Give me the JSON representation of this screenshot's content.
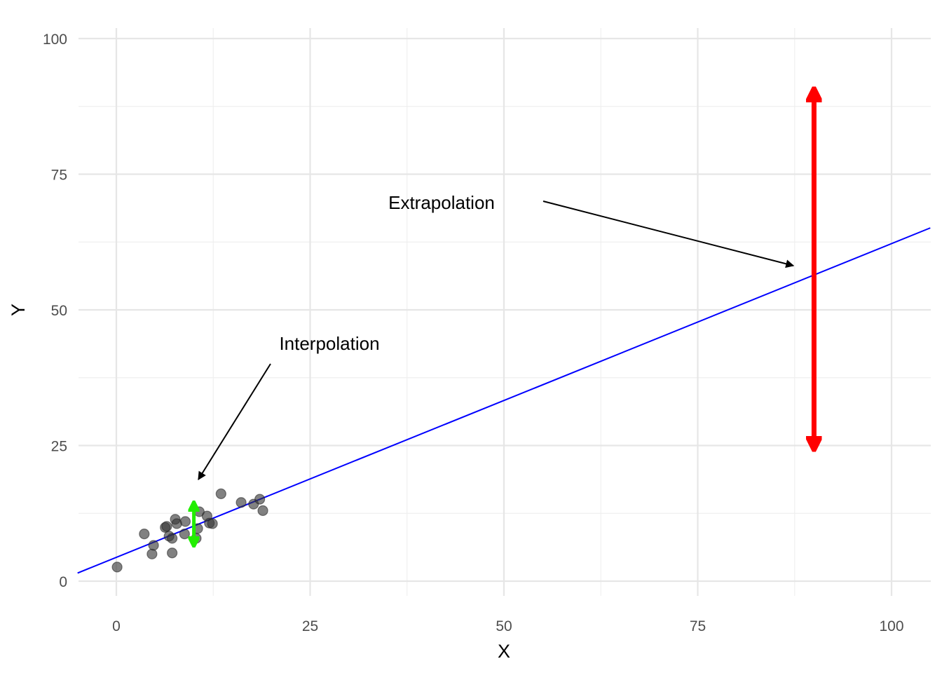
{
  "chart_data": {
    "type": "scatter",
    "title": "",
    "xlabel": "X",
    "ylabel": "Y",
    "xlim": [
      -5,
      105
    ],
    "ylim": [
      -5,
      103
    ],
    "x_ticks": [
      0,
      25,
      50,
      75,
      100
    ],
    "y_ticks": [
      0,
      25,
      50,
      75,
      100
    ],
    "x_tick_labels": [
      "0",
      "25",
      "50",
      "75",
      "100"
    ],
    "y_tick_labels": [
      "0",
      "25",
      "50",
      "75",
      "100"
    ],
    "grid": true,
    "legend": "none",
    "series": [
      {
        "name": "observations",
        "type": "scatter",
        "color": "#333333",
        "points": [
          [
            0.1,
            2.6
          ],
          [
            3.6,
            8.7
          ],
          [
            4.6,
            5.0
          ],
          [
            4.8,
            6.6
          ],
          [
            6.3,
            9.9
          ],
          [
            6.5,
            10.1
          ],
          [
            6.8,
            8.3
          ],
          [
            7.2,
            7.9
          ],
          [
            7.2,
            5.2
          ],
          [
            7.6,
            11.4
          ],
          [
            7.8,
            10.6
          ],
          [
            8.8,
            8.7
          ],
          [
            8.9,
            11.0
          ],
          [
            10.3,
            7.9
          ],
          [
            10.5,
            9.7
          ],
          [
            10.7,
            12.8
          ],
          [
            11.7,
            12.0
          ],
          [
            12.0,
            10.7
          ],
          [
            12.4,
            10.6
          ],
          [
            13.5,
            16.1
          ],
          [
            16.1,
            14.5
          ],
          [
            17.7,
            14.2
          ],
          [
            18.5,
            15.1
          ],
          [
            18.9,
            13.0
          ]
        ]
      },
      {
        "name": "regression line",
        "type": "line",
        "color": "#0000ff",
        "slope": 0.578,
        "intercept": 4.4,
        "x": [
          -5,
          105
        ],
        "y": [
          1.5,
          65.1
        ]
      }
    ],
    "segments": [
      {
        "name": "interpolation-interval",
        "color": "#22ee00",
        "x": 10,
        "y_from": 7,
        "y_to": 14,
        "arrows": "both"
      },
      {
        "name": "extrapolation-interval",
        "color": "#ff0000",
        "x": 90,
        "y_from": 25,
        "y_to": 90,
        "arrows": "both"
      }
    ],
    "annotations": [
      {
        "text": "Interpolation",
        "label_x": 20,
        "label_y": 43,
        "arrow_from": [
          20,
          40
        ],
        "arrow_to": [
          10,
          18
        ]
      },
      {
        "text": "Extrapolation",
        "label_x": 42,
        "label_y": 69,
        "arrow_from": [
          55,
          70
        ],
        "arrow_to": [
          88,
          58
        ]
      }
    ]
  },
  "labels": {
    "xlabel": "X",
    "ylabel": "Y",
    "x_ticks": [
      "0",
      "25",
      "50",
      "75",
      "100"
    ],
    "y_ticks": [
      "0",
      "25",
      "50",
      "75",
      "100"
    ],
    "annotation_interpolation": "Interpolation",
    "annotation_extrapolation": "Extrapolation"
  },
  "colors": {
    "points": "#333333",
    "line": "#0000ff",
    "interpolation": "#22ee00",
    "extrapolation": "#ff0000",
    "grid_major": "#e6e6e6",
    "grid_minor": "#efefef"
  }
}
